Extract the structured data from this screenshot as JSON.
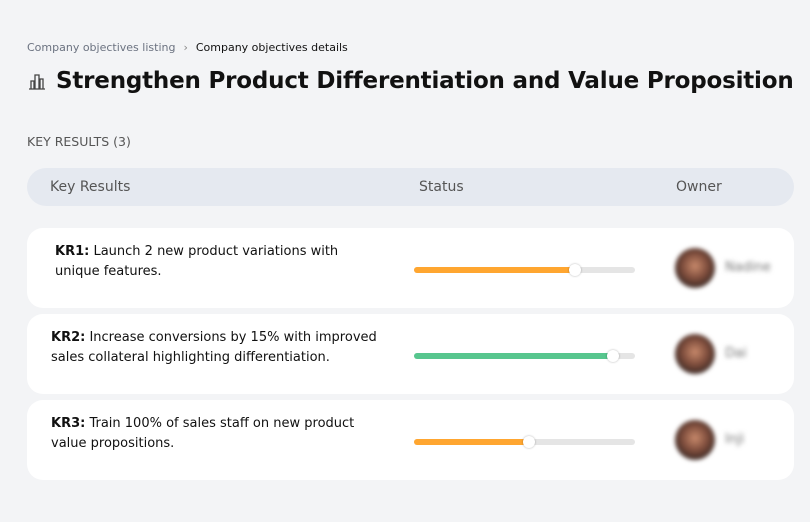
{
  "breadcrumb": {
    "parent": "Company objectives listing",
    "separator": "›",
    "current": "Company objectives details"
  },
  "title": {
    "icon": "building-chart-icon",
    "text": "Strengthen Product Differentiation and Value Proposition"
  },
  "key_results_label": "KEY RESULTS (3)",
  "table": {
    "headers": [
      "Key Results",
      "Status",
      "Owner"
    ]
  },
  "rows": [
    {
      "id": "KR1:",
      "text": " Launch 2 new product variations with unique features.",
      "progress": 73,
      "color": "#ffa630",
      "owner": "Nadine"
    },
    {
      "id": "KR2:",
      "text": " Increase conversions by 15% with improved sales collateral highlighting differentiation.",
      "progress": 90,
      "color": "#57c68e",
      "owner": "Dai"
    },
    {
      "id": "KR3:",
      "text": " Train 100% of sales staff on new product value propositions.",
      "progress": 52,
      "color": "#ffa630",
      "owner": "Inji"
    }
  ]
}
